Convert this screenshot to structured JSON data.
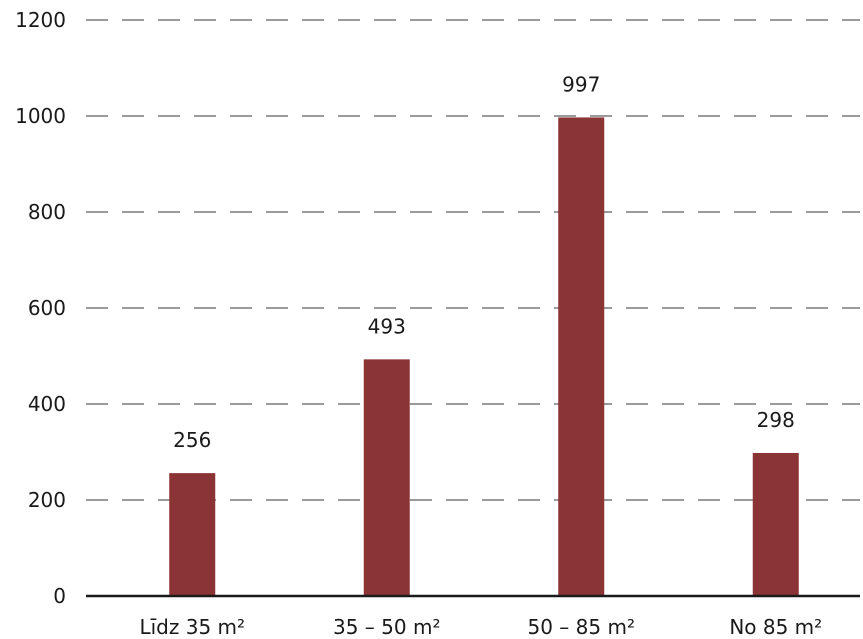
{
  "chart_data": {
    "type": "bar",
    "categories": [
      "Līdz 35 m²",
      "35 – 50 m²",
      "50 – 85 m²",
      "No 85 m²"
    ],
    "values": [
      256,
      493,
      997,
      298
    ],
    "data_labels": [
      "256",
      "493",
      "997",
      "298"
    ],
    "title": "",
    "xlabel": "",
    "ylabel": "",
    "ylim": [
      0,
      1200
    ],
    "yticks": [
      0,
      200,
      400,
      600,
      800,
      1000,
      1200
    ],
    "grid": true,
    "legend": "none",
    "bar_color": "#8b3435"
  }
}
